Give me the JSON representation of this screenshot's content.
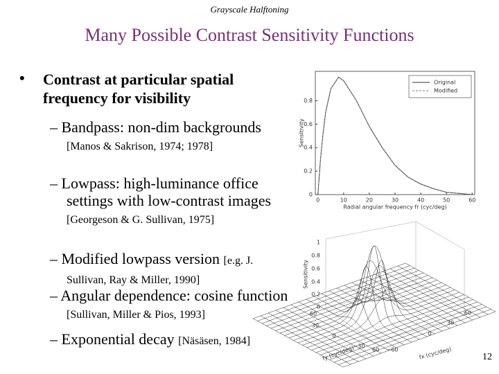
{
  "header": "Grayscale Halftoning",
  "title": "Many Possible Contrast Sensitivity Functions",
  "bullet": "Contrast at particular spatial frequency for visibility",
  "subbullets": [
    {
      "text": "Bandpass: non-dim backgrounds",
      "citation": "[Manos & Sakrison, 1974; 1978]"
    },
    {
      "text": "Lowpass: high-luminance office settings with low-contrast images",
      "citation": "[Georgeson & G. Sullivan, 1975]"
    },
    {
      "text": "Modified lowpass version",
      "citation": "[e.g. J. Sullivan, Ray & Miller, 1990]"
    },
    {
      "text": "Angular dependence: cosine function",
      "citation": "[Sullivan, Miller & Pios, 1993]"
    },
    {
      "text": "Exponential decay",
      "citation": "[Näsäsen, 1984]"
    }
  ],
  "chart_data": {
    "type": "line",
    "xlabel": "Radial angular frequency fr (cyc/deg)",
    "ylabel": "Sensitivity",
    "x": [
      0,
      1,
      2,
      3,
      5,
      8,
      10,
      15,
      20,
      25,
      30,
      35,
      40,
      45,
      50,
      55,
      60
    ],
    "series": [
      {
        "name": "Original",
        "color": "#333333",
        "dash": false,
        "values": [
          0,
          0.3,
          0.52,
          0.7,
          0.9,
          1.0,
          0.97,
          0.8,
          0.58,
          0.4,
          0.25,
          0.15,
          0.09,
          0.05,
          0.02,
          0.01,
          0.0
        ]
      },
      {
        "name": "Modified",
        "color": "#777777",
        "dash": true,
        "values": [
          0,
          0.3,
          0.52,
          0.7,
          0.9,
          1.0,
          0.97,
          0.8,
          0.58,
          0.4,
          0.25,
          0.15,
          0.09,
          0.05,
          0.02,
          0.01,
          0.0
        ]
      }
    ],
    "xlim": [
      -1,
      61
    ],
    "ylim": [
      0,
      1.05
    ],
    "xticks": [
      0,
      10,
      20,
      30,
      40,
      50,
      60
    ],
    "yticks": [
      0,
      0.2,
      0.4,
      0.6,
      0.8
    ],
    "legend": "upper right",
    "grid": false
  },
  "surface_plot": {
    "ylabel": "Sensitivity",
    "zticks": [
      "1",
      "0.8",
      "0.6",
      "0.4",
      "0.2",
      "0"
    ],
    "fy_ticks": [
      "60",
      "30",
      "0",
      "−30"
    ],
    "fx_ticks": [
      "60",
      "−60",
      "0",
      "30",
      "60"
    ],
    "fy_label": "fy (cyc/deg)",
    "fx_label": "fx (cyc/deg)"
  },
  "page_number": "12"
}
